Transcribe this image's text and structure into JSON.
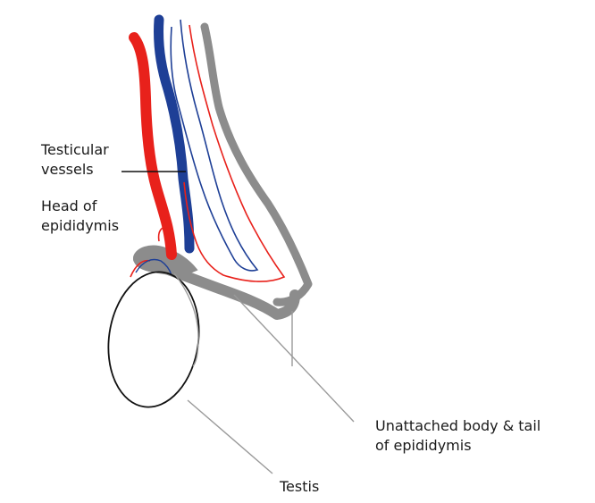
{
  "labels": {
    "testicular_vessels": "Testicular\nvessels",
    "head_of_epididymis": "Head of\nepididymis",
    "unattached_body_tail": "Unattached body & tail\nof epididymis",
    "testis": "Testis"
  },
  "colors": {
    "artery": "#e8211b",
    "vein": "#1e3f96",
    "epididymis": "#8c8c8c",
    "leader": "#9a9a9a",
    "outline": "#111111"
  }
}
